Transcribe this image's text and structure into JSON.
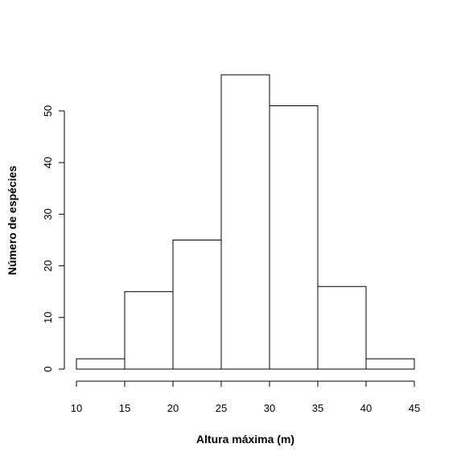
{
  "chart_data": {
    "type": "bar",
    "subtype": "histogram",
    "title": "",
    "xlabel": "Altura máxima (m)",
    "ylabel": "Número de espécies",
    "bins": [
      {
        "start": 10,
        "end": 15,
        "count": 2
      },
      {
        "start": 15,
        "end": 20,
        "count": 15
      },
      {
        "start": 20,
        "end": 25,
        "count": 25
      },
      {
        "start": 25,
        "end": 30,
        "count": 57
      },
      {
        "start": 30,
        "end": 35,
        "count": 51
      },
      {
        "start": 35,
        "end": 40,
        "count": 16
      },
      {
        "start": 40,
        "end": 45,
        "count": 2
      }
    ],
    "xlim": [
      10,
      45
    ],
    "ylim": [
      0,
      57
    ],
    "x_ticks": [
      10,
      15,
      20,
      25,
      30,
      35,
      40,
      45
    ],
    "y_ticks": [
      0,
      10,
      20,
      30,
      40,
      50
    ],
    "grid": false,
    "legend": "none",
    "colors": {
      "bar_fill": "#ffffff",
      "bar_stroke": "#000000"
    }
  }
}
